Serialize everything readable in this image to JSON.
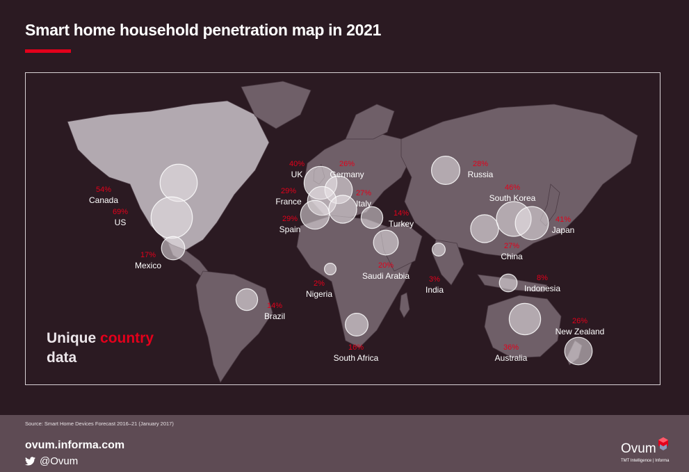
{
  "title": "Smart home household penetration map in 2021",
  "tagline": {
    "part1": "Unique",
    "accent": "country",
    "part2": "data"
  },
  "countries": [
    {
      "name": "Canada",
      "pct": "54%"
    },
    {
      "name": "US",
      "pct": "69%"
    },
    {
      "name": "Mexico",
      "pct": "17%"
    },
    {
      "name": "Brazil",
      "pct": "14%"
    },
    {
      "name": "UK",
      "pct": "40%"
    },
    {
      "name": "Germany",
      "pct": "26%"
    },
    {
      "name": "France",
      "pct": "29%"
    },
    {
      "name": "Italy",
      "pct": "27%"
    },
    {
      "name": "Spain",
      "pct": "29%"
    },
    {
      "name": "Turkey",
      "pct": "14%"
    },
    {
      "name": "Russia",
      "pct": "28%"
    },
    {
      "name": "Saudi Arabia",
      "pct": "20%"
    },
    {
      "name": "Nigeria",
      "pct": "2%"
    },
    {
      "name": "South Africa",
      "pct": "16%"
    },
    {
      "name": "India",
      "pct": "3%"
    },
    {
      "name": "China",
      "pct": "27%"
    },
    {
      "name": "South Korea",
      "pct": "46%"
    },
    {
      "name": "Japan",
      "pct": "41%"
    },
    {
      "name": "Indonesia",
      "pct": "8%"
    },
    {
      "name": "Australia",
      "pct": "36%"
    },
    {
      "name": "New Zealand",
      "pct": "26%"
    }
  ],
  "footer": {
    "source": "Source: Smart Home Devices Forecast 2016–21 (January 2017)",
    "site": "ovum.informa.com",
    "twitter": "@Ovum",
    "brand": "Ovum",
    "brand_sub": "TMT Intelligence | Informa"
  },
  "colors": {
    "background": "#2b1a22",
    "accent": "#e3001b",
    "land": "#6f5f68",
    "land_light": "#b2a9b0",
    "footer": "#5e4b54"
  }
}
